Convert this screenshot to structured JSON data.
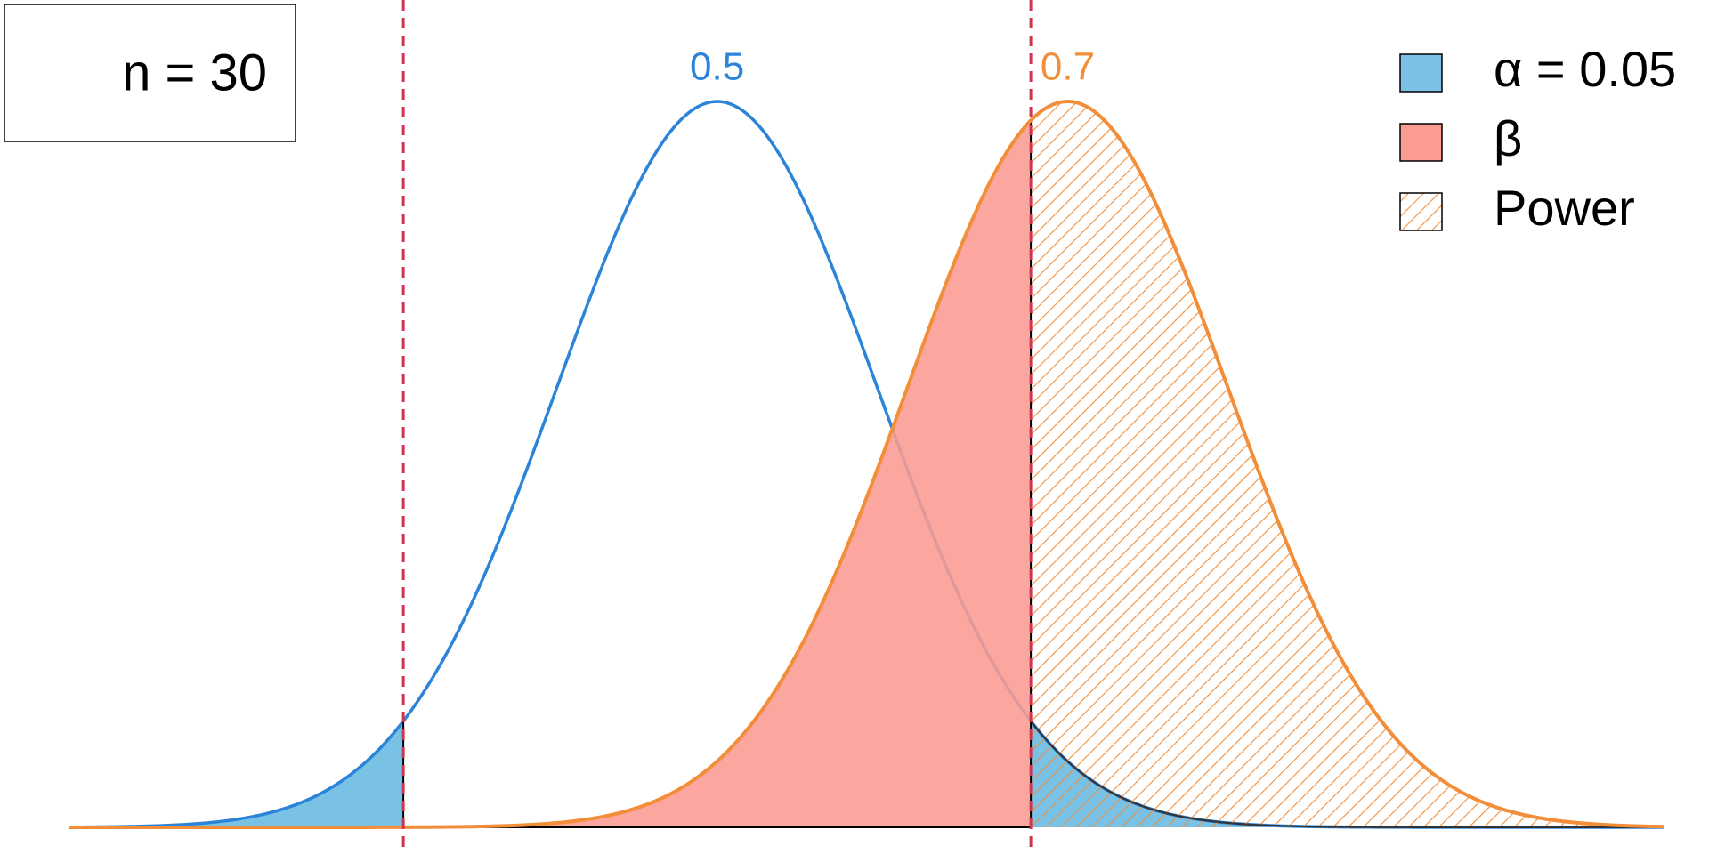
{
  "chart_data": {
    "type": "power",
    "annotation": "n = 30",
    "distributions": [
      {
        "mean": 0.5,
        "sd": 0.0913,
        "color": "#2b84d8"
      },
      {
        "mean": 0.7,
        "sd": 0.0913,
        "color": "#f28e3a"
      }
    ],
    "critical_values": [
      0.321,
      0.679
    ],
    "critical_color": "#d0344f",
    "xlim": [
      0.13,
      1.04
    ],
    "legend": [
      {
        "label": "α = 0.05",
        "color": "#79c2e6"
      },
      {
        "label": "β",
        "color": "#fb9b92"
      },
      {
        "label": "Power",
        "color": "#f28e3a",
        "hatch": true
      }
    ],
    "legend_position": "top-right"
  }
}
